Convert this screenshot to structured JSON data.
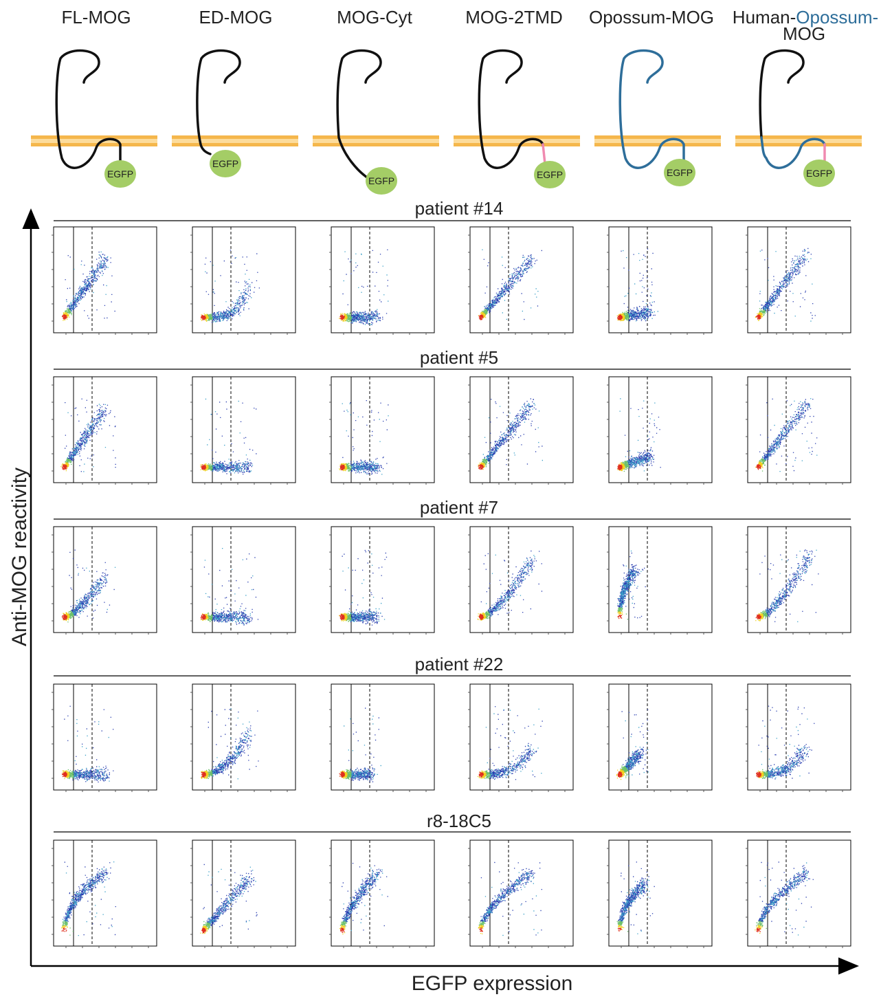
{
  "columns": [
    [
      "FL-MOG"
    ],
    [
      "ED-MOG"
    ],
    [
      "MOG-Cyt"
    ],
    [
      "MOG-2TMD"
    ],
    [
      "Opossum-MOG"
    ],
    [
      "Human-",
      "Opossum-",
      "MOG"
    ]
  ],
  "tag": "EGFP",
  "rows": [
    "patient #14",
    "patient #5",
    "patient #7",
    "patient #22",
    "r8-18C5"
  ],
  "axes": {
    "y": "Anti-MOG reactivity",
    "x": "EGFP expression"
  }
}
